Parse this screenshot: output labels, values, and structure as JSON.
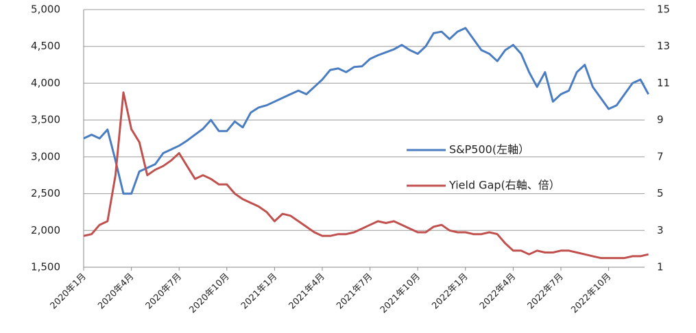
{
  "chart_data": {
    "type": "line",
    "categories": [
      "2020年1月",
      null,
      null,
      null,
      null,
      null,
      "2020年4月",
      null,
      null,
      null,
      null,
      null,
      "2020年7月",
      null,
      null,
      null,
      null,
      null,
      "2020年10月",
      null,
      null,
      null,
      null,
      null,
      "2021年1月",
      null,
      null,
      null,
      null,
      null,
      "2021年4月",
      null,
      null,
      null,
      null,
      null,
      "2021年7月",
      null,
      null,
      null,
      null,
      null,
      "2021年10月",
      null,
      null,
      null,
      null,
      null,
      "2022年1月",
      null,
      null,
      null,
      null,
      null,
      "2022年4月",
      null,
      null,
      null,
      null,
      null,
      "2022年7月",
      null,
      null,
      null,
      null,
      null,
      "2022年10月",
      null,
      null,
      null,
      null,
      null
    ],
    "series": [
      {
        "name": "S&P500(左軸）",
        "color": "#4a7cc2",
        "values": [
          3250,
          3300,
          3250,
          3370,
          2950,
          2500,
          2500,
          2800,
          2850,
          2900,
          3050,
          3100,
          3150,
          3220,
          3300,
          3380,
          3500,
          3350,
          3350,
          3480,
          3400,
          3600,
          3670,
          3700,
          3750,
          3800,
          3850,
          3900,
          3850,
          3950,
          4050,
          4180,
          4200,
          4150,
          4220,
          4230,
          4330,
          4380,
          4420,
          4460,
          4520,
          4450,
          4400,
          4500,
          4680,
          4700,
          4600,
          4700,
          4750,
          4600,
          4450,
          4400,
          4300,
          4450,
          4520,
          4400,
          4150,
          3950,
          4150,
          3750,
          3850,
          3900,
          4150,
          4250,
          3950,
          3800,
          3650,
          3700,
          3850,
          4000,
          4050,
          3850
        ]
      },
      {
        "name": "Yield Gap(右軸、倍）",
        "color": "#c0504d",
        "axis": "y2",
        "values": [
          2.7,
          2.8,
          3.3,
          3.5,
          6.0,
          10.5,
          8.5,
          7.8,
          6.0,
          6.3,
          6.5,
          6.8,
          7.2,
          6.5,
          5.8,
          6.0,
          5.8,
          5.5,
          5.5,
          5.0,
          4.7,
          4.5,
          4.3,
          4.0,
          3.5,
          3.9,
          3.8,
          3.5,
          3.2,
          2.9,
          2.7,
          2.7,
          2.8,
          2.8,
          2.9,
          3.1,
          3.3,
          3.5,
          3.4,
          3.5,
          3.3,
          3.1,
          2.9,
          2.9,
          3.2,
          3.3,
          3.0,
          2.9,
          2.9,
          2.8,
          2.8,
          2.9,
          2.8,
          2.3,
          1.9,
          1.9,
          1.7,
          1.9,
          1.8,
          1.8,
          1.9,
          1.9,
          1.8,
          1.7,
          1.6,
          1.5,
          1.5,
          1.5,
          1.5,
          1.6,
          1.6,
          1.7
        ]
      }
    ],
    "ylim": [
      1500,
      5000
    ],
    "yticks": [
      {
        "value": 1500,
        "label": "1,500"
      },
      {
        "value": 2000,
        "label": "2,000"
      },
      {
        "value": 2500,
        "label": "2,500"
      },
      {
        "value": 3000,
        "label": "3,000"
      },
      {
        "value": 3500,
        "label": "3,500"
      },
      {
        "value": 4000,
        "label": "4,000"
      },
      {
        "value": 4500,
        "label": "4,500"
      },
      {
        "value": 5000,
        "label": "5,000"
      }
    ],
    "y2lim": [
      1,
      15
    ],
    "y2ticks": [
      1,
      3,
      5,
      7,
      9,
      11,
      13,
      15
    ],
    "grid": true
  }
}
